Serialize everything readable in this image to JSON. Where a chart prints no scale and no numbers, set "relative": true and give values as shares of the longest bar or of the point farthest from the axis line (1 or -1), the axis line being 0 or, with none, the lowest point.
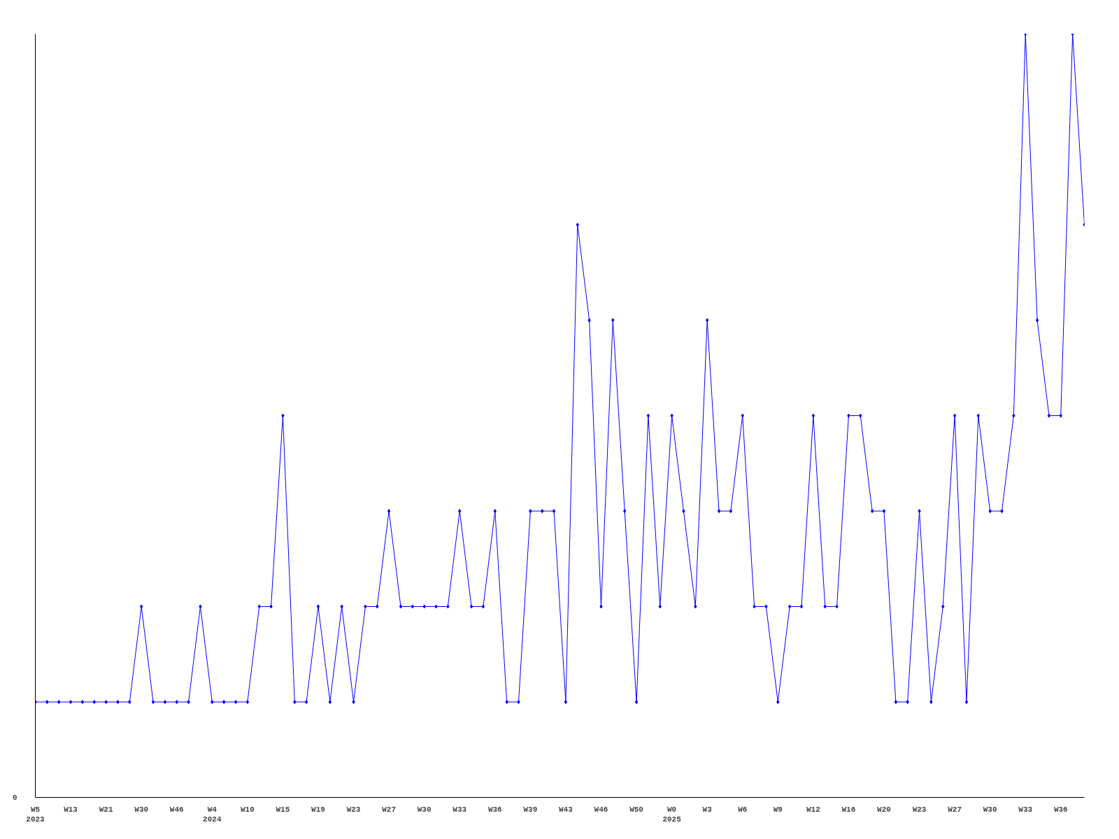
{
  "chart_data": {
    "type": "line",
    "relative": true,
    "marker": "diamond",
    "grid": false,
    "annotations": [
      "0"
    ],
    "categories": [
      "W5\n2023",
      null,
      null,
      "W13",
      null,
      null,
      "W21",
      null,
      null,
      "W30",
      null,
      null,
      "W46",
      null,
      null,
      "W4\n2024",
      null,
      null,
      "W10",
      null,
      null,
      "W15",
      null,
      null,
      "W19",
      null,
      null,
      "W23",
      null,
      null,
      "W27",
      null,
      null,
      "W30",
      null,
      null,
      "W33",
      null,
      null,
      "W36",
      null,
      null,
      "W39",
      null,
      null,
      "W43",
      null,
      null,
      "W46",
      null,
      null,
      "W50",
      null,
      null,
      "W0\n2025",
      null,
      null,
      "W3",
      null,
      null,
      "W6",
      null,
      null,
      "W9",
      null,
      null,
      "W12",
      null,
      null,
      "W16",
      null,
      null,
      "W20",
      null,
      null,
      "W23",
      null,
      null,
      "W27",
      null,
      null,
      "W30",
      null,
      null,
      "W33",
      null,
      null,
      "W36",
      null,
      null
    ],
    "series": [
      {
        "color": "#0000ff",
        "values": [
          0.125,
          0.125,
          0.125,
          0.125,
          0.125,
          0.125,
          0.125,
          0.125,
          0.125,
          0.25,
          0.125,
          0.125,
          0.125,
          0.125,
          0.25,
          0.125,
          0.125,
          0.125,
          0.125,
          0.25,
          0.25,
          0.5,
          0.125,
          0.125,
          0.25,
          0.125,
          0.25,
          0.125,
          0.25,
          0.25,
          0.375,
          0.25,
          0.25,
          0.25,
          0.25,
          0.25,
          0.375,
          0.25,
          0.25,
          0.375,
          0.125,
          0.125,
          0.375,
          0.375,
          0.375,
          0.125,
          0.75,
          0.625,
          0.25,
          0.625,
          0.375,
          0.125,
          0.5,
          0.25,
          0.5,
          0.375,
          0.25,
          0.625,
          0.375,
          0.375,
          0.5,
          0.25,
          0.25,
          0.125,
          0.25,
          0.25,
          0.5,
          0.25,
          0.25,
          0.5,
          0.5,
          0.375,
          0.375,
          0.125,
          0.125,
          0.375,
          0.125,
          0.25,
          0.5,
          0.125,
          0.5,
          0.375,
          0.375,
          0.5,
          1,
          0.625,
          0.5,
          0.5,
          1,
          0.75
        ]
      }
    ]
  }
}
